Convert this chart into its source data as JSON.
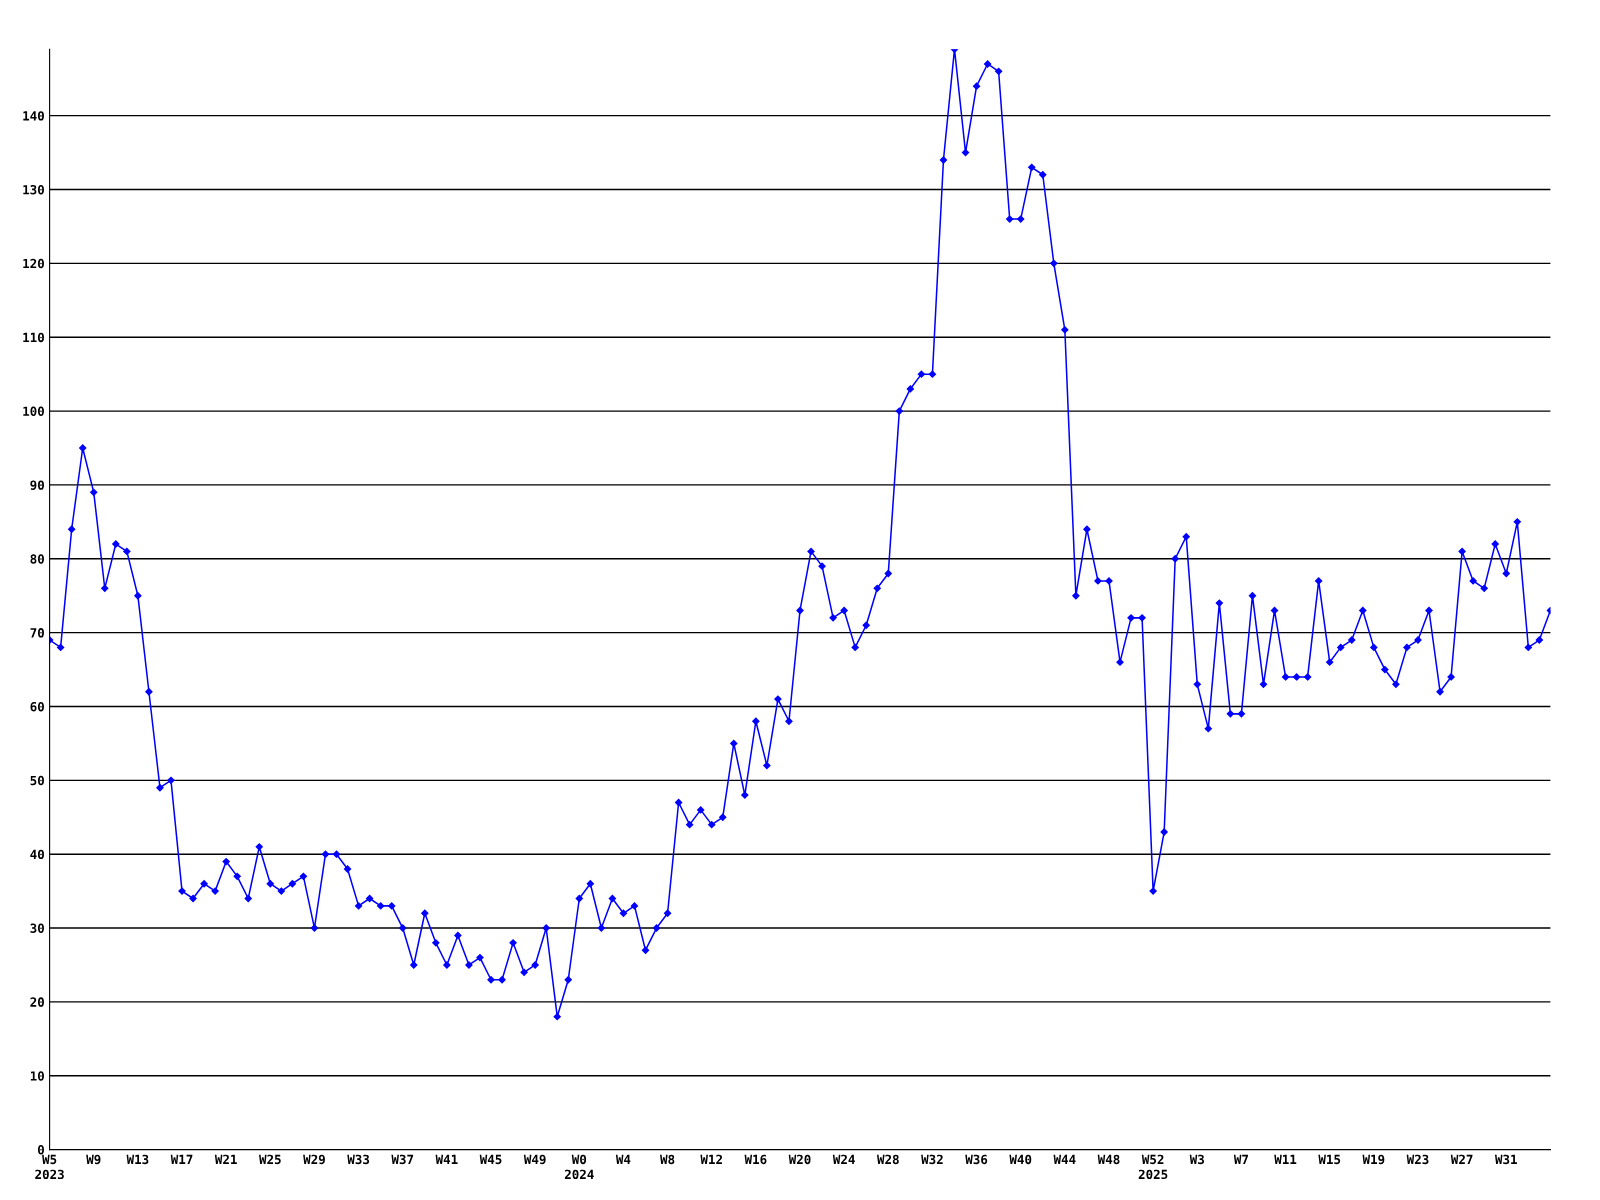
{
  "chart_data": {
    "type": "line",
    "categories": [
      "W5\n2023",
      null,
      null,
      null,
      "W9",
      null,
      null,
      null,
      "W13",
      null,
      null,
      null,
      "W17",
      null,
      null,
      null,
      "W21",
      null,
      null,
      null,
      "W25",
      null,
      null,
      null,
      "W29",
      null,
      null,
      null,
      "W33",
      null,
      null,
      null,
      "W37",
      null,
      null,
      null,
      "W41",
      null,
      null,
      null,
      "W45",
      null,
      null,
      null,
      "W49",
      null,
      null,
      null,
      "W0\n2024",
      null,
      null,
      null,
      "W4",
      null,
      null,
      null,
      "W8",
      null,
      null,
      null,
      "W12",
      null,
      null,
      null,
      "W16",
      null,
      null,
      null,
      "W20",
      null,
      null,
      null,
      "W24",
      null,
      null,
      null,
      "W28",
      null,
      null,
      null,
      "W32",
      null,
      null,
      null,
      "W36",
      null,
      null,
      null,
      "W40",
      null,
      null,
      null,
      "W44",
      null,
      null,
      null,
      "W48",
      null,
      null,
      null,
      "W52\n2025",
      null,
      null,
      null,
      "W3",
      null,
      null,
      null,
      "W7",
      null,
      null,
      null,
      "W11",
      null,
      null,
      null,
      "W15",
      null,
      null,
      null,
      "W19",
      null,
      null,
      null,
      "W23",
      null,
      null,
      null,
      "W27",
      null,
      null,
      null,
      "W31",
      null,
      null,
      null,
      null
    ],
    "series": [
      {
        "color": "#0000ff",
        "values": [
          69,
          68,
          84,
          95,
          89,
          76,
          82,
          81,
          75,
          62,
          49,
          50,
          35,
          34,
          36,
          35,
          39,
          37,
          34,
          41,
          36,
          35,
          36,
          37,
          30,
          40,
          40,
          38,
          33,
          34,
          33,
          33,
          30,
          25,
          32,
          28,
          25,
          29,
          25,
          26,
          23,
          23,
          28,
          24,
          25,
          30,
          18,
          23,
          34,
          36,
          30,
          34,
          32,
          33,
          27,
          30,
          32,
          47,
          44,
          46,
          44,
          45,
          55,
          48,
          58,
          52,
          61,
          58,
          73,
          81,
          79,
          72,
          73,
          68,
          71,
          76,
          78,
          100,
          103,
          105,
          105,
          134,
          149,
          135,
          144,
          147,
          146,
          126,
          126,
          133,
          132,
          120,
          111,
          75,
          84,
          77,
          77,
          66,
          72,
          72,
          35,
          43,
          80,
          83,
          63,
          57,
          74,
          59,
          59,
          75,
          63,
          73,
          64,
          64,
          64,
          77,
          66,
          68,
          69,
          73,
          68,
          65,
          63,
          68,
          69,
          73,
          62,
          64,
          81,
          77,
          76,
          82,
          78,
          85,
          68,
          69,
          73
        ]
      }
    ],
    "ylim": [
      0,
      149
    ],
    "yticks": [
      0,
      10,
      20,
      30,
      40,
      50,
      60,
      70,
      80,
      90,
      100,
      110,
      120,
      130,
      140
    ],
    "grid": "y",
    "marker": "diamond",
    "line_style": "solid"
  }
}
